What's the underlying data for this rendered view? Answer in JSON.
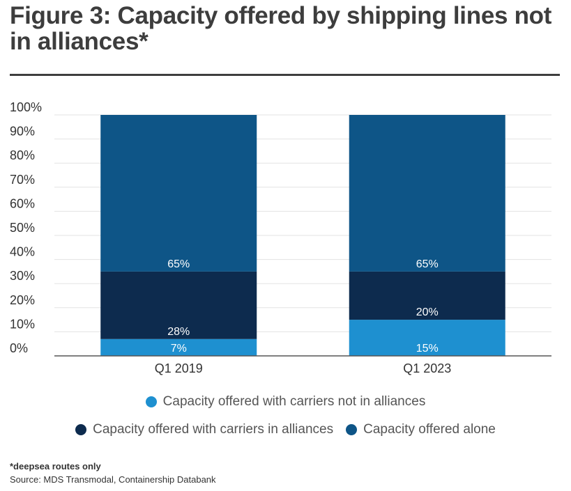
{
  "title": "Figure 3: Capacity offered by shipping lines not in alliances*",
  "note": "*deepsea routes only",
  "source": "Source: MDS Transmodal, Containership Databank",
  "chart_data": {
    "type": "bar",
    "stacked": true,
    "categories": [
      "Q1 2019",
      "Q1 2023"
    ],
    "series": [
      {
        "name": "Capacity offered with carriers not in alliances",
        "values": [
          7,
          15
        ],
        "labels": [
          "7%",
          "15%"
        ],
        "color": "#1e90d0"
      },
      {
        "name": "Capacity offered with carriers in alliances",
        "values": [
          28,
          20
        ],
        "labels": [
          "28%",
          "20%"
        ],
        "color": "#0d2b4e"
      },
      {
        "name": "Capacity offered alone",
        "values": [
          65,
          65
        ],
        "labels": [
          "65%",
          "65%"
        ],
        "color": "#0e5587"
      }
    ],
    "yticks": [
      "0%",
      "10%",
      "20%",
      "30%",
      "40%",
      "50%",
      "60%",
      "70%",
      "80%",
      "90%",
      "100%"
    ],
    "ylim": [
      0,
      100
    ],
    "grid": true,
    "legend_position": "bottom"
  }
}
